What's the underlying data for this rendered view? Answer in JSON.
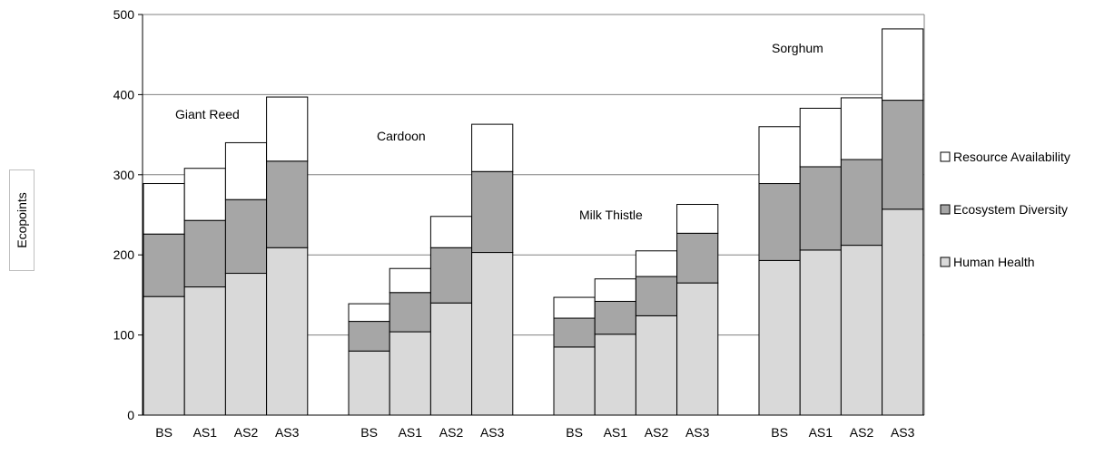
{
  "chart_data": {
    "type": "bar",
    "stacked": true,
    "title": "",
    "xlabel": "",
    "ylabel": "Ecopoints",
    "ylim": [
      0,
      500
    ],
    "yticks": [
      0,
      100,
      200,
      300,
      400,
      500
    ],
    "grid": true,
    "legend_position": "right",
    "groups": [
      {
        "name": "Giant Reed",
        "categories": [
          "BS",
          "AS1",
          "AS2",
          "AS3"
        ]
      },
      {
        "name": "Cardoon",
        "categories": [
          "BS",
          "AS1",
          "AS2",
          "AS3"
        ]
      },
      {
        "name": "Milk Thistle",
        "categories": [
          "BS",
          "AS1",
          "AS2",
          "AS3"
        ]
      },
      {
        "name": "Sorghum",
        "categories": [
          "BS",
          "AS1",
          "AS2",
          "AS3"
        ]
      }
    ],
    "series": [
      {
        "name": "Human Health",
        "color": "#d9d9d9",
        "values": [
          148,
          160,
          177,
          209,
          80,
          104,
          140,
          203,
          85,
          101,
          124,
          165,
          193,
          206,
          212,
          257
        ]
      },
      {
        "name": "Ecosystem Diversity",
        "color": "#a6a6a6",
        "values": [
          78,
          83,
          92,
          108,
          37,
          49,
          69,
          101,
          36,
          41,
          49,
          62,
          96,
          104,
          107,
          136
        ]
      },
      {
        "name": "Resource Availability",
        "color": "#ffffff",
        "values": [
          63,
          65,
          71,
          80,
          22,
          30,
          39,
          59,
          26,
          28,
          32,
          36,
          71,
          73,
          77,
          89
        ]
      }
    ]
  }
}
